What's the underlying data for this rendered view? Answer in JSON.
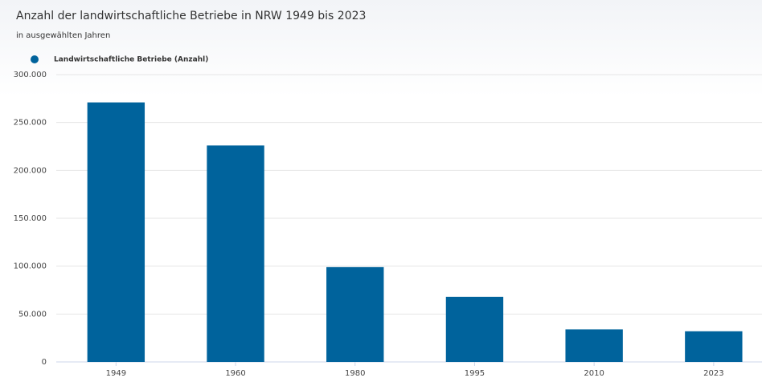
{
  "chart_data": {
    "type": "bar",
    "title": "Anzahl der landwirtschaftliche Betriebe in NRW 1949 bis 2023",
    "subtitle": "in ausgewählten Jahren",
    "categories": [
      "1949",
      "1960",
      "1980",
      "1995",
      "2010",
      "2023"
    ],
    "series": [
      {
        "name": "Landwirtschaftliche Betriebe (Anzahl)",
        "color": "#00639c",
        "values": [
          271000,
          226000,
          99000,
          68000,
          34000,
          32000
        ]
      }
    ],
    "ylim": [
      0,
      300000
    ],
    "yticks": [
      0,
      {
        "value": 50000,
        "label": "50.000"
      },
      {
        "value": 100000,
        "label": "100.000"
      },
      {
        "value": 150000,
        "label": "150.000"
      },
      {
        "value": 200000,
        "label": "200.000"
      },
      {
        "value": 250000,
        "label": "250.000"
      },
      {
        "value": 300000,
        "label": "300.000"
      }
    ],
    "grid": true,
    "legend": "top-left"
  }
}
